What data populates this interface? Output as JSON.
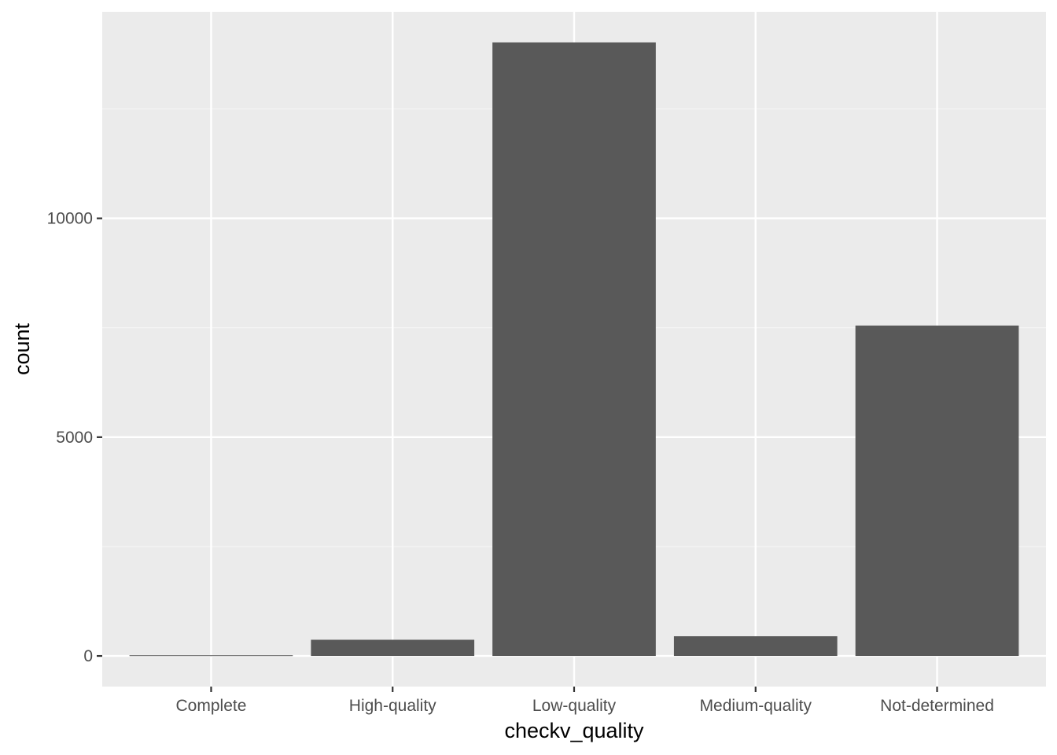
{
  "chart_data": {
    "type": "bar",
    "title": "",
    "xlabel": "checkv_quality",
    "ylabel": "count",
    "categories": [
      "Complete",
      "High-quality",
      "Low-quality",
      "Medium-quality",
      "Not-determined"
    ],
    "values": [
      15,
      370,
      14020,
      450,
      7550
    ],
    "ylim": [
      -700,
      14720
    ],
    "yticks": [
      0,
      5000,
      10000
    ],
    "ytick_labels": [
      "0",
      "5000",
      "10000"
    ],
    "grid": true,
    "legend": "none",
    "colors": {
      "panel_background": "#ebebeb",
      "grid_major": "#ffffff",
      "grid_minor": "#f5f5f5",
      "bar_fill": "#595959",
      "tick_mark": "#333333",
      "tick_label": "#4d4d4d",
      "axis_title": "#000000"
    }
  }
}
